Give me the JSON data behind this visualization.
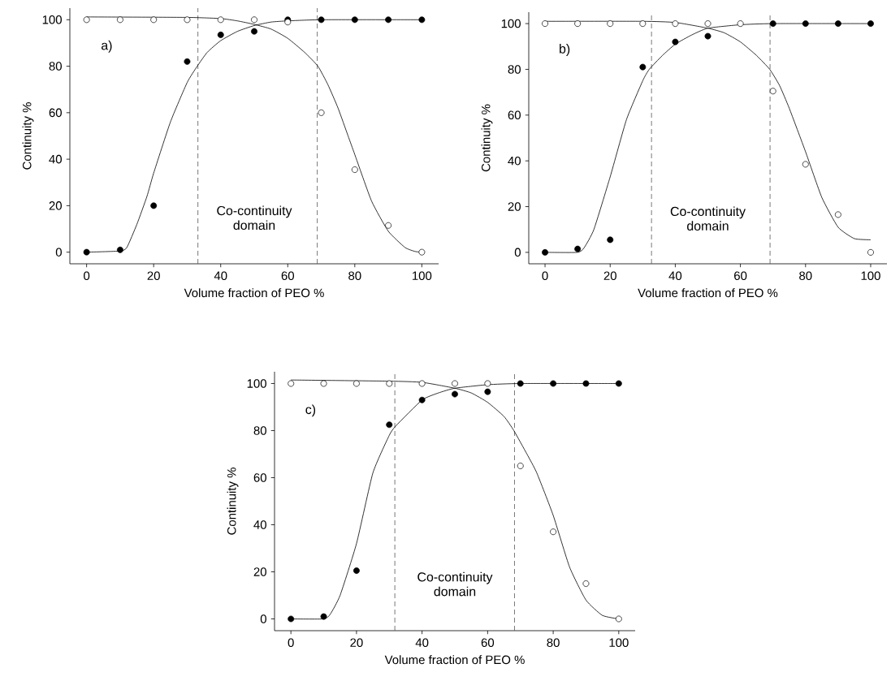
{
  "chart_data": [
    {
      "type": "scatter",
      "xlabel": "Volume fraction of PEO %",
      "ylabel": "Continuity %",
      "xlim": [
        -5,
        105
      ],
      "ylim": [
        -5,
        105
      ],
      "xticks": [
        0,
        20,
        40,
        60,
        80,
        100
      ],
      "yticks": [
        0,
        20,
        40,
        60,
        80,
        100
      ],
      "annotations": [
        "a)",
        "Co-continuity domain"
      ],
      "ref_lines": [
        {
          "axis": "x",
          "value": 33.2,
          "color": "#555555",
          "line_style": "dashed"
        },
        {
          "axis": "x",
          "value": 68.8,
          "color": "#555555",
          "line_style": "dashed"
        }
      ],
      "series": [
        {
          "type": "line",
          "color": "#000000",
          "x": [
            0,
            10,
            12,
            15,
            18,
            20,
            25,
            30,
            33,
            36,
            40,
            45,
            50,
            55,
            60,
            70,
            100
          ],
          "values": [
            0,
            0.5,
            2,
            12,
            24,
            34,
            56,
            73,
            80,
            86,
            91,
            95,
            97.5,
            99,
            99.5,
            100,
            100
          ]
        },
        {
          "type": "line",
          "color": "#000000",
          "x": [
            0,
            30,
            40,
            45,
            50,
            55,
            60,
            65,
            69,
            72,
            75,
            78,
            80,
            85,
            90,
            95,
            98,
            100
          ],
          "values": [
            101.2,
            101,
            100.5,
            99.5,
            98,
            96,
            92,
            86,
            80,
            72,
            62,
            50,
            42,
            22,
            9,
            2,
            0.3,
            0
          ]
        },
        {
          "marker": "circle",
          "color": "#000000",
          "x": [
            0,
            10,
            20,
            30,
            40,
            50,
            60,
            70,
            80,
            90,
            100
          ],
          "values": [
            0,
            1,
            20,
            82,
            93.5,
            95,
            100,
            100,
            100,
            100,
            100
          ]
        },
        {
          "marker": "circle",
          "color": "#ffffff",
          "x": [
            0,
            10,
            20,
            30,
            40,
            50,
            60,
            70,
            80,
            90,
            100
          ],
          "values": [
            100,
            100,
            100,
            100,
            100,
            100,
            99,
            60,
            35.5,
            11.5,
            0
          ]
        }
      ]
    },
    {
      "type": "scatter",
      "xlabel": "Volume fraction of PEO %",
      "ylabel": "Continuity %",
      "xlim": [
        -5,
        105
      ],
      "ylim": [
        -5,
        105
      ],
      "xticks": [
        0,
        20,
        40,
        60,
        80,
        100
      ],
      "yticks": [
        0,
        20,
        40,
        60,
        80,
        100
      ],
      "annotations": [
        "b)",
        "Co-continuity domain"
      ],
      "ref_lines": [
        {
          "axis": "x",
          "value": 32.7,
          "color": "#555555",
          "line_style": "dashed"
        },
        {
          "axis": "x",
          "value": 69.1,
          "color": "#555555",
          "line_style": "dashed"
        }
      ],
      "series": [
        {
          "type": "line",
          "color": "#000000",
          "x": [
            0,
            10,
            12,
            15,
            20,
            25,
            30,
            32,
            36,
            40,
            45,
            50,
            60,
            70,
            100
          ],
          "values": [
            0,
            0,
            2,
            10,
            33,
            58,
            75,
            80,
            86,
            91,
            95,
            98,
            99.5,
            100,
            100
          ]
        },
        {
          "type": "line",
          "color": "#000000",
          "x": [
            0,
            30,
            40,
            50,
            55,
            60,
            65,
            69,
            72,
            75,
            80,
            85,
            90,
            95,
            100
          ],
          "values": [
            101,
            101,
            100.5,
            98,
            96,
            92,
            86,
            80,
            73,
            63,
            44,
            24,
            11,
            6,
            5.5
          ]
        },
        {
          "marker": "circle",
          "color": "#000000",
          "x": [
            0,
            10,
            20,
            30,
            40,
            50,
            60,
            70,
            80,
            90,
            100
          ],
          "values": [
            0,
            1.5,
            5.5,
            81,
            92,
            94.5,
            null,
            100,
            100,
            100,
            100
          ]
        },
        {
          "marker": "circle",
          "color": "#ffffff",
          "x": [
            0,
            10,
            20,
            30,
            40,
            50,
            60,
            70,
            80,
            90,
            100
          ],
          "values": [
            100,
            100,
            100,
            100,
            100,
            100,
            100,
            70.5,
            38.5,
            16.5,
            0
          ]
        }
      ]
    },
    {
      "type": "scatter",
      "xlabel": "Volume fraction of PEO %",
      "ylabel": "Continuity %",
      "xlim": [
        -5,
        105
      ],
      "ylim": [
        -5,
        105
      ],
      "xticks": [
        0,
        20,
        40,
        60,
        80,
        100
      ],
      "yticks": [
        0,
        20,
        40,
        60,
        80,
        100
      ],
      "annotations": [
        "c)",
        "Co-continuity domain"
      ],
      "ref_lines": [
        {
          "axis": "x",
          "value": 31.7,
          "color": "#555555",
          "line_style": "dashed"
        },
        {
          "axis": "x",
          "value": 68.2,
          "color": "#555555",
          "line_style": "dashed"
        }
      ],
      "series": [
        {
          "type": "line",
          "color": "#000000",
          "x": [
            0,
            10,
            12,
            15,
            20,
            25,
            30,
            32,
            40,
            45,
            50,
            60,
            70,
            100
          ],
          "values": [
            0,
            0,
            2,
            10,
            32,
            62,
            78,
            82,
            93,
            96,
            98,
            99.5,
            100,
            100
          ]
        },
        {
          "type": "line",
          "color": "#000000",
          "x": [
            0,
            30,
            40,
            50,
            55,
            60,
            65,
            68,
            72,
            75,
            80,
            85,
            90,
            95,
            100
          ],
          "values": [
            101.5,
            101,
            100.5,
            98,
            96,
            92,
            86,
            80,
            70,
            62,
            44,
            22,
            8,
            1.5,
            0
          ]
        },
        {
          "marker": "circle",
          "color": "#000000",
          "x": [
            0,
            10,
            20,
            30,
            40,
            50,
            60,
            70,
            80,
            90,
            100
          ],
          "values": [
            0,
            1,
            20.5,
            82.5,
            93,
            95.5,
            96.5,
            100,
            100,
            100,
            100
          ]
        },
        {
          "marker": "circle",
          "color": "#ffffff",
          "x": [
            0,
            10,
            20,
            30,
            40,
            50,
            60,
            70,
            80,
            90,
            100
          ],
          "values": [
            100,
            100,
            100,
            100,
            100,
            100,
            100,
            65,
            37,
            15,
            0
          ]
        }
      ]
    }
  ]
}
